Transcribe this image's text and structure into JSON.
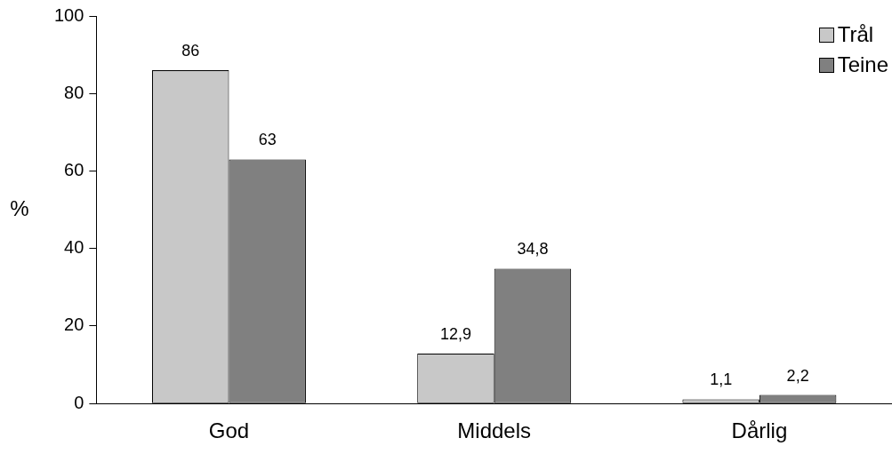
{
  "chart_data": {
    "type": "bar",
    "ylabel": "%",
    "categories": [
      "God",
      "Middels",
      "Dårlig"
    ],
    "series": [
      {
        "name": "Trål",
        "color": "#c8c8c8",
        "values": [
          86,
          12.9,
          1.1
        ],
        "value_labels": [
          "86",
          "12,9",
          "1,1"
        ]
      },
      {
        "name": "Teine",
        "color": "#808080",
        "values": [
          63,
          34.8,
          2.2
        ],
        "value_labels": [
          "63",
          "34,8",
          "2,2"
        ]
      }
    ],
    "ylim": [
      0,
      100
    ],
    "yticks": [
      0,
      20,
      40,
      60,
      80,
      100
    ],
    "grid": false,
    "legend": "top right"
  }
}
